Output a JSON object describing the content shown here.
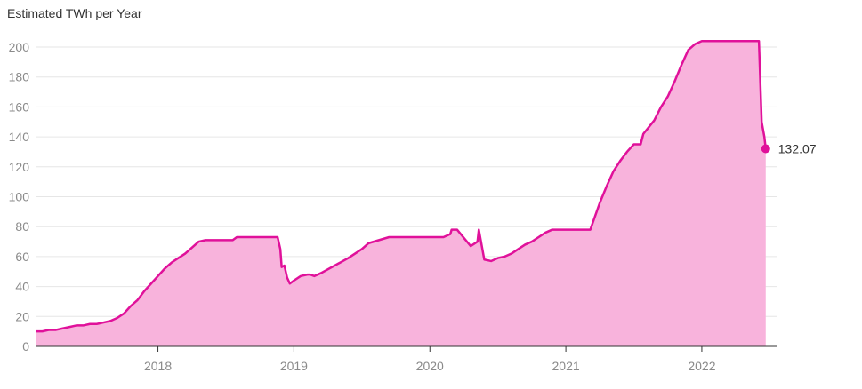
{
  "chart_data": {
    "type": "area",
    "title": "Estimated TWh per Year",
    "xlabel": "",
    "ylabel": "",
    "xlim": [
      2017.1,
      2022.55
    ],
    "ylim": [
      0,
      200
    ],
    "y_ticks": [
      0,
      20,
      40,
      60,
      80,
      100,
      120,
      140,
      160,
      180,
      200
    ],
    "x_ticks": [
      2018,
      2019,
      2020,
      2021,
      2022
    ],
    "x_tick_labels": [
      "2018",
      "2019",
      "2020",
      "2021",
      "2022"
    ],
    "grid": true,
    "line_color": "#e0119a",
    "fill_color": "#f8b3dc",
    "end_label": "132.07",
    "series": [
      {
        "x": [
          2017.1,
          2017.15,
          2017.2,
          2017.25,
          2017.3,
          2017.35,
          2017.4,
          2017.45,
          2017.5,
          2017.55,
          2017.6,
          2017.65,
          2017.7,
          2017.75,
          2017.8,
          2017.85,
          2017.9,
          2017.95,
          2018.0,
          2018.05,
          2018.1,
          2018.15,
          2018.2,
          2018.25,
          2018.3,
          2018.35,
          2018.4,
          2018.45,
          2018.55,
          2018.58,
          2018.7,
          2018.8,
          2018.88,
          2018.9,
          2018.91,
          2018.93,
          2018.95,
          2018.97,
          2019.0,
          2019.05,
          2019.1,
          2019.12,
          2019.15,
          2019.2,
          2019.3,
          2019.4,
          2019.5,
          2019.55,
          2019.7,
          2019.8,
          2019.9,
          2020.0,
          2020.05,
          2020.1,
          2020.15,
          2020.16,
          2020.2,
          2020.3,
          2020.35,
          2020.36,
          2020.4,
          2020.45,
          2020.5,
          2020.55,
          2020.6,
          2020.65,
          2020.7,
          2020.75,
          2020.8,
          2020.85,
          2020.9,
          2021.0,
          2021.1,
          2021.18,
          2021.25,
          2021.3,
          2021.35,
          2021.4,
          2021.45,
          2021.5,
          2021.55,
          2021.57,
          2021.65,
          2021.7,
          2021.75,
          2021.8,
          2021.85,
          2021.9,
          2021.95,
          2022.0,
          2022.1,
          2022.2,
          2022.3,
          2022.38,
          2022.42,
          2022.44,
          2022.46,
          2022.47
        ],
        "values": [
          10,
          10,
          11,
          11,
          12,
          13,
          14,
          14,
          15,
          15,
          16,
          17,
          19,
          22,
          27,
          31,
          37,
          42,
          47,
          52,
          56,
          59,
          62,
          66,
          70,
          71,
          71,
          71,
          71,
          73,
          73,
          73,
          73,
          65,
          53,
          54,
          46,
          42,
          44,
          47,
          48,
          48,
          47,
          49,
          54,
          59,
          65,
          69,
          73,
          73,
          73,
          73,
          73,
          73,
          75,
          78,
          78,
          67,
          70,
          78,
          58,
          57,
          59,
          60,
          62,
          65,
          68,
          70,
          73,
          76,
          78,
          78,
          78,
          78,
          96,
          107,
          117,
          124,
          130,
          135,
          135,
          142,
          151,
          160,
          167,
          177,
          188,
          198,
          202,
          204,
          204,
          204,
          204,
          204,
          204,
          150,
          140,
          132.07
        ]
      }
    ]
  }
}
